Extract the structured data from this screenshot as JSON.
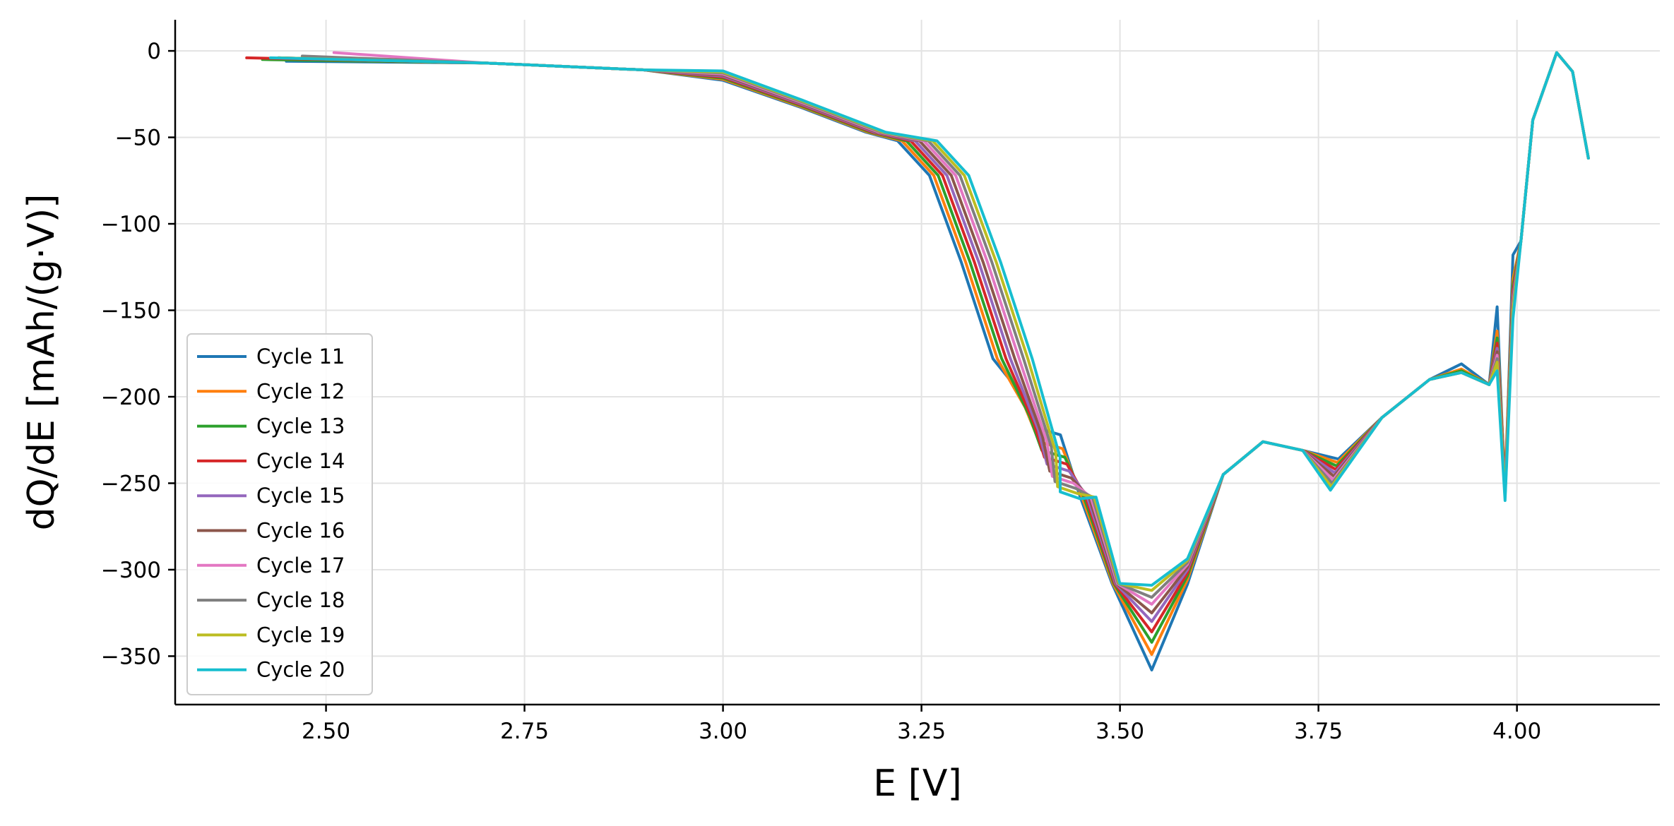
{
  "chart_data": {
    "type": "line",
    "title": "",
    "xlabel": "E [V]",
    "ylabel": "dQ/dE [mAh/(g·V)]",
    "xlim": [
      2.31,
      4.18
    ],
    "ylim": [
      -378,
      18
    ],
    "xticks": [
      2.5,
      2.75,
      3.0,
      3.25,
      3.5,
      3.75,
      4.0
    ],
    "xtick_labels": [
      "2.50",
      "2.75",
      "3.00",
      "3.25",
      "3.50",
      "3.75",
      "4.00"
    ],
    "yticks": [
      0,
      -50,
      -100,
      -150,
      -200,
      -250,
      -300,
      -350
    ],
    "ytick_labels": [
      "0",
      "−50",
      "−100",
      "−150",
      "−200",
      "−250",
      "−300",
      "−350"
    ],
    "grid": true,
    "legend_position": "lower-left",
    "series": [
      {
        "name": "Cycle 11",
        "color": "#1f77b4",
        "start_x": 2.45,
        "start_y": -6,
        "main_peak": -358,
        "shoulder": -218,
        "valley2": -236,
        "hump": -181,
        "spike_neg": -257,
        "spike_pre": -118
      },
      {
        "name": "Cycle 12",
        "color": "#ff7f0e",
        "start_x": 2.43,
        "start_y": -5,
        "main_peak": -349,
        "shoulder": -226,
        "valley2": -238,
        "hump": -184,
        "spike_neg": -250,
        "spike_pre": -132
      },
      {
        "name": "Cycle 13",
        "color": "#2ca02c",
        "start_x": 2.42,
        "start_y": -5,
        "main_peak": -342,
        "shoulder": -231,
        "valley2": -240,
        "hump": -185,
        "spike_neg": -252,
        "spike_pre": -136
      },
      {
        "name": "Cycle 14",
        "color": "#d62728",
        "start_x": 2.4,
        "start_y": -4,
        "main_peak": -336,
        "shoulder": -235,
        "valley2": -242,
        "hump": -186,
        "spike_neg": -253,
        "spike_pre": -139
      },
      {
        "name": "Cycle 15",
        "color": "#9467bd",
        "start_x": 2.44,
        "start_y": -4,
        "main_peak": -330,
        "shoulder": -239,
        "valley2": -244,
        "hump": -186,
        "spike_neg": -254,
        "spike_pre": -142
      },
      {
        "name": "Cycle 16",
        "color": "#8c564b",
        "start_x": 2.44,
        "start_y": -4,
        "main_peak": -325,
        "shoulder": -243,
        "valley2": -246,
        "hump": -186,
        "spike_neg": -255,
        "spike_pre": -144
      },
      {
        "name": "Cycle 17",
        "color": "#e377c2",
        "start_x": 2.51,
        "start_y": -1,
        "main_peak": -320,
        "shoulder": -246,
        "valley2": -248,
        "hump": -186,
        "spike_neg": -256,
        "spike_pre": -146
      },
      {
        "name": "Cycle 18",
        "color": "#7f7f7f",
        "start_x": 2.47,
        "start_y": -3,
        "main_peak": -316,
        "shoulder": -249,
        "valley2": -250,
        "hump": -186,
        "spike_neg": -257,
        "spike_pre": -148
      },
      {
        "name": "Cycle 19",
        "color": "#bcbd22",
        "start_x": 2.44,
        "start_y": -4,
        "main_peak": -312,
        "shoulder": -252,
        "valley2": -252,
        "hump": -186,
        "spike_neg": -258,
        "spike_pre": -150
      },
      {
        "name": "Cycle 20",
        "color": "#17becf",
        "start_x": 2.43,
        "start_y": -4,
        "main_peak": -309,
        "shoulder": -255,
        "valley2": -254,
        "hump": -186,
        "spike_neg": -260,
        "spike_pre": -155
      }
    ]
  }
}
